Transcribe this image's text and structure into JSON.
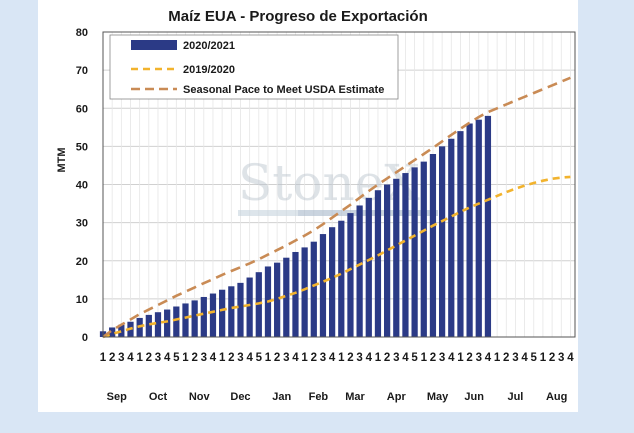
{
  "chart_data": {
    "type": "bar",
    "title": "Maíz EUA - Progreso de Exportación",
    "ylabel": "MTM",
    "xlabel": "",
    "ylim": [
      0,
      80
    ],
    "yticks": [
      0,
      10,
      20,
      30,
      40,
      50,
      60,
      70,
      80
    ],
    "grid": true,
    "legend_position": "top-left",
    "watermark": "StoneX",
    "months": [
      "Sep",
      "Oct",
      "Nov",
      "Dec",
      "Jan",
      "Feb",
      "Mar",
      "Apr",
      "May",
      "Jun",
      "Jul",
      "Aug"
    ],
    "weeks_per_month": [
      4,
      5,
      4,
      5,
      4,
      4,
      4,
      5,
      4,
      4,
      5,
      4
    ],
    "week_labels": [
      "1",
      "2",
      "3",
      "4",
      "1",
      "2",
      "3",
      "4",
      "5",
      "1",
      "2",
      "3",
      "4",
      "1",
      "2",
      "3",
      "4",
      "5",
      "1",
      "2",
      "3",
      "4",
      "1",
      "2",
      "3",
      "4",
      "1",
      "2",
      "3",
      "4",
      "1",
      "2",
      "3",
      "4",
      "5",
      "1",
      "2",
      "3",
      "4",
      "1",
      "2",
      "3",
      "4",
      "1",
      "2",
      "3",
      "4",
      "5",
      "1",
      "2",
      "3",
      "4"
    ],
    "series": [
      {
        "name": "2020/2021",
        "type": "bar",
        "color": "#2b3a86",
        "values": [
          1.5,
          2.5,
          3.2,
          4.0,
          5.0,
          5.8,
          6.5,
          7.2,
          8.0,
          8.8,
          9.6,
          10.5,
          11.4,
          12.4,
          13.3,
          14.2,
          15.6,
          17.0,
          18.5,
          19.5,
          20.8,
          22.3,
          23.5,
          25.0,
          27.0,
          28.8,
          30.5,
          32.5,
          34.5,
          36.5,
          38.5,
          40.0,
          41.5,
          43.0,
          44.5,
          46.0,
          48.0,
          50.0,
          52.0,
          54.0,
          56.0,
          57.0,
          58.0
        ]
      },
      {
        "name": "2019/2020",
        "type": "line",
        "style": "dashed",
        "color": "#f2b32d",
        "values": [
          0.0,
          0.8,
          1.5,
          2.2,
          2.8,
          3.3,
          3.7,
          4.1,
          4.6,
          5.1,
          5.6,
          6.1,
          6.6,
          7.1,
          7.6,
          8.0,
          8.4,
          8.8,
          9.3,
          10.0,
          10.8,
          11.6,
          12.5,
          13.5,
          14.5,
          15.5,
          16.6,
          17.8,
          19.0,
          20.2,
          21.4,
          22.7,
          24.0,
          25.3,
          26.6,
          27.9,
          29.2,
          30.4,
          31.6,
          32.8,
          34.0,
          35.0,
          36.0,
          37.0,
          38.0,
          38.9,
          39.7,
          40.4,
          41.0,
          41.5,
          41.8,
          42.0
        ]
      },
      {
        "name": "Seasonal Pace to Meet USDA Estimate",
        "type": "line",
        "style": "dashed",
        "color": "#c98b55",
        "values": [
          0.0,
          1.8,
          3.2,
          4.6,
          6.0,
          7.2,
          8.4,
          9.6,
          10.8,
          11.9,
          13.0,
          14.1,
          15.2,
          16.3,
          17.3,
          18.3,
          19.3,
          20.4,
          21.6,
          22.8,
          24.0,
          25.3,
          26.6,
          28.0,
          29.6,
          31.3,
          33.0,
          34.7,
          36.5,
          38.3,
          40.0,
          41.6,
          43.2,
          44.8,
          46.4,
          48.0,
          49.6,
          51.3,
          53.0,
          54.6,
          56.2,
          57.7,
          59.0,
          60.0,
          61.0,
          62.0,
          63.0,
          64.0,
          65.0,
          66.0,
          67.0,
          68.0
        ]
      }
    ]
  }
}
